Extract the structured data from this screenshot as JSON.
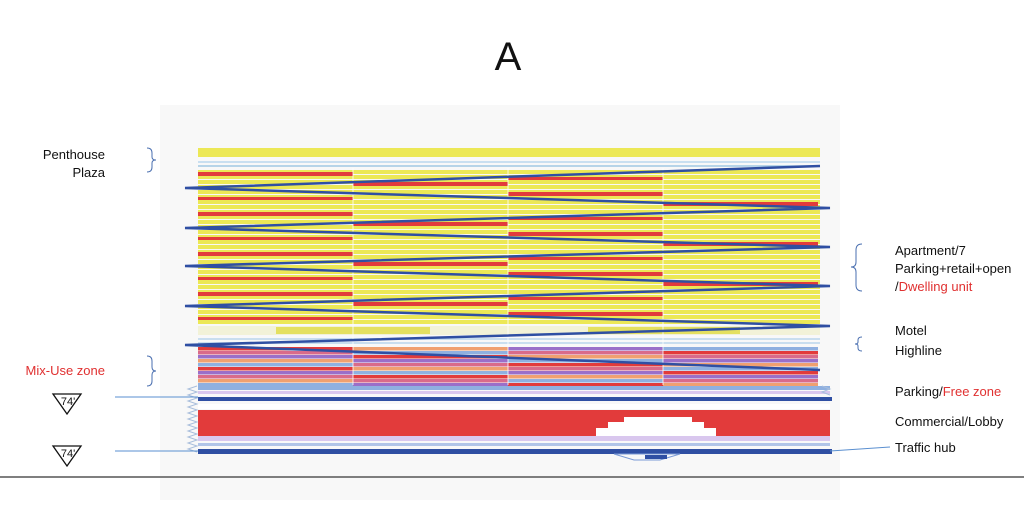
{
  "title": "A",
  "labels": {
    "penthouse": "Penthouse",
    "plaza": "Plaza",
    "mixuse": "Mix-Use zone",
    "apartment": "Apartment/7",
    "parking_retail": "Parking+retail+open",
    "slash": "/",
    "dwelling": "Dwelling unit",
    "motel": "Motel",
    "highline": "Highline",
    "parking": "Parking/",
    "free_zone": "Free zone",
    "commercial": "Commercial/Lobby",
    "traffic_hub": "Traffic hub"
  },
  "markers": {
    "upper": "74'",
    "lower": "74'"
  },
  "colors": {
    "yellow": "#ece856",
    "red": "#e23b3b",
    "blue": "#2f4fa3",
    "pink": "#d96b8a",
    "purple": "#9a6fc9",
    "orange": "#f0a070",
    "light_blue": "#8fb0e0",
    "accent_red": "#e03030"
  }
}
